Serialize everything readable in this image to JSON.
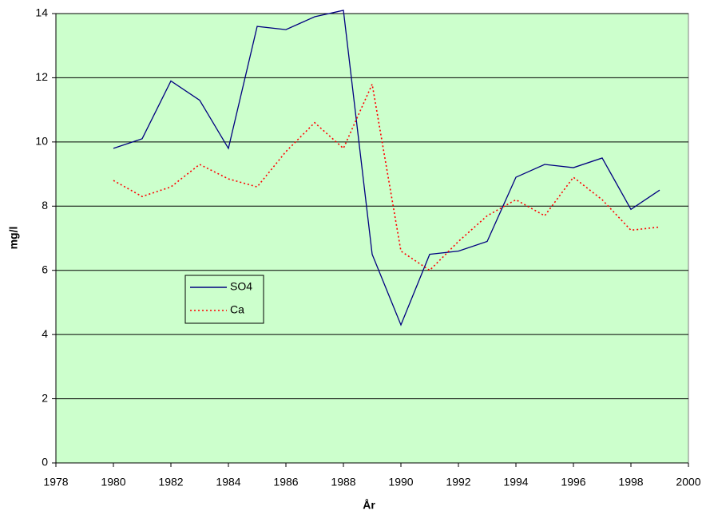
{
  "chart_data": {
    "type": "line",
    "x_label": "År",
    "y_label": "mg/l",
    "x": [
      1980,
      1981,
      1982,
      1983,
      1984,
      1985,
      1986,
      1987,
      1988,
      1989,
      1990,
      1991,
      1992,
      1993,
      1994,
      1995,
      1996,
      1997,
      1998,
      1999
    ],
    "series": [
      {
        "name": "SO4",
        "color": "#000080",
        "line_style": "solid",
        "values": [
          9.8,
          10.1,
          11.9,
          11.3,
          9.8,
          13.6,
          13.5,
          13.9,
          14.1,
          6.5,
          4.3,
          6.5,
          6.6,
          6.9,
          8.9,
          9.3,
          9.2,
          9.5,
          7.9,
          8.5
        ]
      },
      {
        "name": "Ca",
        "color": "#ff0000",
        "line_style": "dotted",
        "values": [
          8.8,
          8.3,
          8.6,
          9.3,
          8.85,
          8.6,
          9.7,
          10.6,
          9.8,
          11.8,
          6.6,
          6.0,
          6.9,
          7.7,
          8.2,
          7.7,
          8.9,
          8.2,
          7.25,
          7.35
        ]
      }
    ],
    "xlim": [
      1978,
      2000
    ],
    "xticks": [
      1978,
      1980,
      1982,
      1984,
      1986,
      1988,
      1990,
      1992,
      1994,
      1996,
      1998,
      2000
    ],
    "ylim": [
      0,
      14
    ],
    "yticks": [
      0,
      2,
      4,
      6,
      8,
      10,
      12,
      14
    ],
    "grid": true,
    "background": "#ccffcc"
  }
}
